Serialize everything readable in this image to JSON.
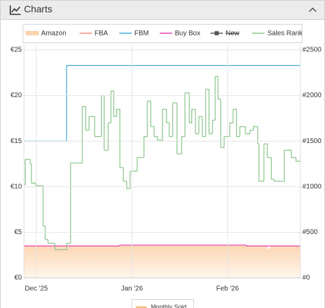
{
  "panel_title": "Charts",
  "chart_data": {
    "type": "step",
    "xticks": [
      {
        "value": 0,
        "label": "Dec '25"
      },
      {
        "value": 31,
        "label": "Jan '26"
      },
      {
        "value": 62,
        "label": "Feb '26"
      }
    ],
    "xlim": [
      -4,
      85.6
    ],
    "ylim": [
      0,
      25
    ],
    "yticks": [
      {
        "value": 0,
        "label": "€0"
      },
      {
        "value": 5,
        "label": "€5"
      },
      {
        "value": 10,
        "label": "€10"
      },
      {
        "value": 15,
        "label": "€15"
      },
      {
        "value": 20,
        "label": "€20"
      },
      {
        "value": 25,
        "label": "€25"
      }
    ],
    "y2lim": [
      0,
      2500
    ],
    "y2ticks": [
      {
        "value": 0,
        "label": "#0"
      },
      {
        "value": 500,
        "label": "#500"
      },
      {
        "value": 1000,
        "label": "#1000"
      },
      {
        "value": 1500,
        "label": "#1500"
      },
      {
        "value": 2000,
        "label": "#2000"
      },
      {
        "value": 2500,
        "label": "#2500"
      }
    ],
    "grid": true,
    "series": [
      {
        "name": "Amazon",
        "color": "#f5a35c",
        "area": true,
        "x": [
          -4,
          27,
          68,
          75,
          75.8,
          85.6
        ],
        "values": [
          3.5,
          3.6,
          3.5,
          3.2,
          3.5,
          3.5
        ]
      },
      {
        "name": "FBA",
        "color": "#ff8a7a",
        "x": [],
        "values": []
      },
      {
        "name": "FBM",
        "color": "#3fa9dd",
        "x": [
          -4,
          9.8,
          85.6
        ],
        "values": [
          15,
          23.3,
          23.3
        ]
      },
      {
        "name": "Buy Box",
        "color": "#e63cb4",
        "x": [
          -4,
          27,
          68,
          85.6
        ],
        "values": [
          3.5,
          3.6,
          3.5,
          3.5
        ]
      },
      {
        "name": "New",
        "color": "#555555",
        "hidden": true,
        "x": [],
        "values": []
      },
      {
        "name": "Sales Rank",
        "color": "#86c386",
        "axis": "y2",
        "x": [
          -4,
          -3.6,
          -2,
          -1.6,
          -0.2,
          0.9,
          2.2,
          2.9,
          3.8,
          6,
          9.8,
          11.1,
          14.7,
          14.9,
          16,
          17.1,
          18.9,
          21.1,
          22,
          23.3,
          24.2,
          25.1,
          26,
          27.1,
          28.2,
          29.3,
          30.4,
          32.7,
          34.9,
          36,
          37.1,
          38.2,
          39.3,
          40.9,
          42.2,
          43.1,
          44.2,
          45.6,
          47.1,
          48.2,
          49.6,
          50.4,
          51.6,
          52.7,
          53.8,
          54.9,
          56,
          57.1,
          58,
          58.9,
          59.8,
          60.9,
          62.7,
          63.8,
          64.9,
          66,
          67.8,
          69.3,
          70.4,
          71.8,
          72.2,
          73.8,
          74.9,
          76.2,
          77.1,
          79.3,
          80.4,
          82.7,
          84.2,
          85.6
        ],
        "values": [
          1020,
          1300,
          1250,
          1040,
          1010,
          1010,
          570,
          420,
          380,
          310,
          380,
          1260,
          1260,
          1880,
          1620,
          1770,
          1550,
          2000,
          1400,
          1700,
          2050,
          1770,
          1850,
          1210,
          1060,
          980,
          1170,
          1320,
          1550,
          1940,
          1660,
          1550,
          1510,
          1850,
          1700,
          1550,
          1920,
          1360,
          1550,
          2030,
          1700,
          1850,
          1580,
          1770,
          1550,
          2070,
          1580,
          1730,
          2210,
          1960,
          1430,
          1550,
          1700,
          1850,
          1550,
          1660,
          1580,
          1620,
          1660,
          1470,
          1060,
          1470,
          1320,
          1080,
          1060,
          1060,
          1400,
          1320,
          1280,
          1260
        ]
      }
    ],
    "bottom_legend": [
      "Monthly Sold"
    ]
  }
}
